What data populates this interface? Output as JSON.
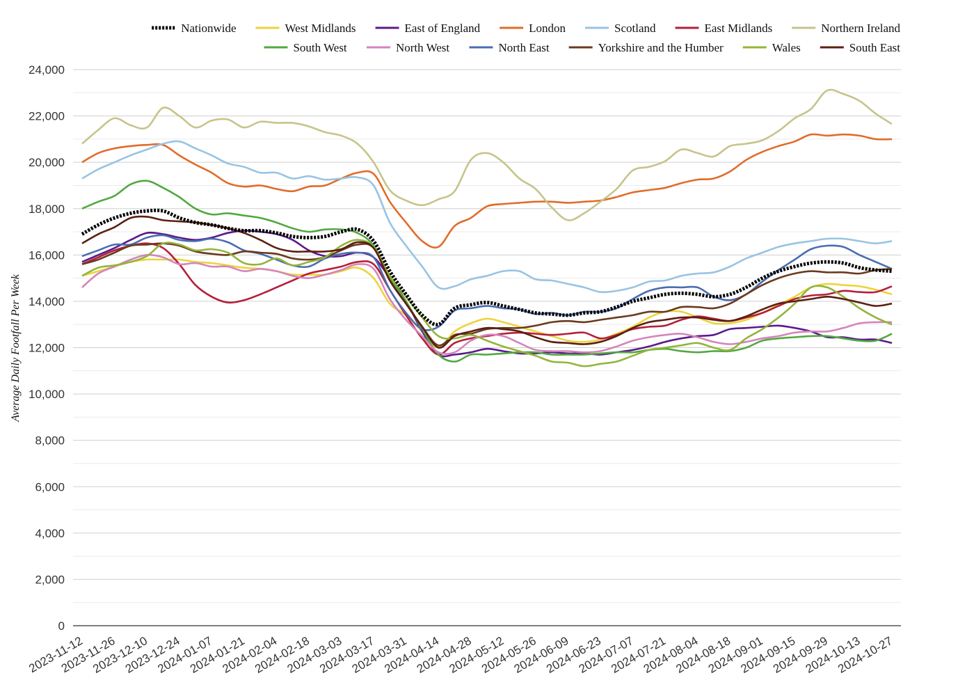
{
  "chart_data": {
    "type": "line",
    "title": "",
    "xlabel": "",
    "ylabel": "Average Daily Footfall Per Week",
    "ylim": [
      0,
      24000
    ],
    "yticks": [
      0,
      2000,
      4000,
      6000,
      8000,
      10000,
      12000,
      14000,
      16000,
      18000,
      20000,
      22000,
      24000
    ],
    "ytick_labels": [
      "0",
      "2,000",
      "4,000",
      "6,000",
      "8,000",
      "10,000",
      "12,000",
      "14,000",
      "16,000",
      "18,000",
      "20,000",
      "22,000",
      "24,000"
    ],
    "grid": true,
    "legend_position": "top",
    "xtick_labels": [
      "2023-11-12",
      "2023-11-26",
      "2023-12-10",
      "2023-12-24",
      "2024-01-07",
      "2024-01-21",
      "2024-02-04",
      "2024-02-18",
      "2024-03-03",
      "2024-03-17",
      "2024-03-31",
      "2024-04-14",
      "2024-04-28",
      "2024-05-12",
      "2024-05-26",
      "2024-06-09",
      "2024-06-23",
      "2024-07-07",
      "2024-07-21",
      "2024-08-04",
      "2024-08-18",
      "2024-09-01",
      "2024-09-15",
      "2024-09-29",
      "2024-10-13",
      "2024-10-27"
    ],
    "x": [
      "2023-11-12",
      "2023-11-19",
      "2023-11-26",
      "2023-12-03",
      "2023-12-10",
      "2023-12-17",
      "2023-12-24",
      "2023-12-31",
      "2024-01-07",
      "2024-01-14",
      "2024-01-21",
      "2024-01-28",
      "2024-02-04",
      "2024-02-11",
      "2024-02-18",
      "2024-02-25",
      "2024-03-03",
      "2024-03-10",
      "2024-03-17",
      "2024-03-24",
      "2024-03-31",
      "2024-04-07",
      "2024-04-14",
      "2024-04-21",
      "2024-04-28",
      "2024-05-05",
      "2024-05-12",
      "2024-05-19",
      "2024-05-26",
      "2024-06-02",
      "2024-06-09",
      "2024-06-16",
      "2024-06-23",
      "2024-06-30",
      "2024-07-07",
      "2024-07-14",
      "2024-07-21",
      "2024-07-28",
      "2024-08-04",
      "2024-08-11",
      "2024-08-18",
      "2024-08-25",
      "2024-09-01",
      "2024-09-08",
      "2024-09-15",
      "2024-09-22",
      "2024-09-29",
      "2024-10-06",
      "2024-10-13",
      "2024-10-20",
      "2024-10-27"
    ],
    "series": [
      {
        "name": "Nationwide",
        "color": "#000000",
        "dashed": true,
        "values": [
          16900,
          17300,
          17600,
          17800,
          17900,
          17900,
          17600,
          17400,
          17300,
          17150,
          17050,
          17050,
          16950,
          16800,
          16750,
          16800,
          17000,
          17100,
          16600,
          15300,
          14300,
          13400,
          13000,
          13700,
          13850,
          13950,
          13800,
          13650,
          13500,
          13450,
          13400,
          13500,
          13550,
          13750,
          14000,
          14150,
          14300,
          14350,
          14300,
          14200,
          14300,
          14600,
          15000,
          15300,
          15500,
          15650,
          15700,
          15650,
          15450,
          15350,
          15300
        ]
      },
      {
        "name": "West Midlands",
        "color": "#ebd43a",
        "values": [
          15100,
          15300,
          15500,
          15700,
          15800,
          15800,
          15800,
          15700,
          15650,
          15550,
          15450,
          15400,
          15300,
          15150,
          15150,
          15150,
          15300,
          15450,
          15000,
          13900,
          13400,
          12700,
          12000,
          12700,
          13050,
          13250,
          13100,
          12900,
          12700,
          12500,
          12300,
          12250,
          12350,
          12600,
          12900,
          13300,
          13550,
          13550,
          13300,
          13050,
          13050,
          13200,
          13500,
          13850,
          14200,
          14600,
          14750,
          14700,
          14650,
          14500,
          14300
        ]
      },
      {
        "name": "East of England",
        "color": "#5b1a8b",
        "values": [
          15700,
          16000,
          16300,
          16650,
          16950,
          16900,
          16750,
          16650,
          16750,
          16950,
          17050,
          17000,
          16900,
          16650,
          16200,
          15950,
          15950,
          16100,
          15900,
          15000,
          14000,
          12700,
          11700,
          11700,
          11800,
          11950,
          11850,
          11750,
          11750,
          11800,
          11750,
          11750,
          11700,
          11800,
          11900,
          12050,
          12250,
          12400,
          12500,
          12550,
          12800,
          12850,
          12900,
          12950,
          12850,
          12700,
          12450,
          12450,
          12350,
          12350,
          12200
        ]
      },
      {
        "name": "London",
        "color": "#e06c2a",
        "values": [
          20000,
          20400,
          20600,
          20700,
          20750,
          20750,
          20300,
          19900,
          19550,
          19100,
          18950,
          19000,
          18850,
          18750,
          18950,
          19000,
          19300,
          19550,
          19500,
          18300,
          17400,
          16600,
          16350,
          17250,
          17600,
          18100,
          18200,
          18250,
          18300,
          18300,
          18250,
          18300,
          18350,
          18500,
          18700,
          18800,
          18900,
          19100,
          19250,
          19300,
          19600,
          20100,
          20450,
          20700,
          20900,
          21200,
          21150,
          21200,
          21150,
          21000,
          21000
        ]
      },
      {
        "name": "Scotland",
        "color": "#98c4e3",
        "values": [
          19300,
          19700,
          20000,
          20300,
          20550,
          20800,
          20900,
          20600,
          20300,
          19950,
          19800,
          19550,
          19550,
          19300,
          19400,
          19250,
          19300,
          19350,
          19000,
          17400,
          16400,
          15500,
          14600,
          14650,
          14950,
          15100,
          15300,
          15300,
          14950,
          14900,
          14750,
          14600,
          14400,
          14450,
          14600,
          14850,
          14900,
          15100,
          15200,
          15250,
          15500,
          15850,
          16100,
          16350,
          16500,
          16600,
          16700,
          16700,
          16600,
          16500,
          16600
        ]
      },
      {
        "name": "East Midlands",
        "color": "#b51f3a",
        "values": [
          15600,
          15900,
          16200,
          16400,
          16500,
          16300,
          15600,
          14700,
          14200,
          13950,
          14050,
          14300,
          14600,
          14900,
          15200,
          15350,
          15500,
          15700,
          15600,
          14500,
          13400,
          12400,
          11700,
          12200,
          12400,
          12500,
          12600,
          12650,
          12600,
          12550,
          12600,
          12650,
          12400,
          12550,
          12800,
          12900,
          12950,
          13200,
          13350,
          13250,
          13150,
          13300,
          13500,
          13800,
          14100,
          14250,
          14300,
          14450,
          14400,
          14400,
          14650
        ]
      },
      {
        "name": "Northern Ireland",
        "color": "#c6c48a",
        "values": [
          20800,
          21400,
          21900,
          21600,
          21500,
          22350,
          22000,
          21500,
          21800,
          21850,
          21500,
          21750,
          21700,
          21700,
          21550,
          21300,
          21150,
          20800,
          20000,
          18800,
          18350,
          18150,
          18400,
          18750,
          20100,
          20400,
          20000,
          19300,
          18850,
          18050,
          17500,
          17800,
          18300,
          18850,
          19650,
          19800,
          20050,
          20550,
          20400,
          20250,
          20700,
          20800,
          20950,
          21350,
          21900,
          22300,
          23100,
          22950,
          22650,
          22100,
          21650
        ]
      },
      {
        "name": "South West",
        "color": "#52a840",
        "values": [
          18000,
          18300,
          18550,
          19050,
          19200,
          18900,
          18500,
          18000,
          17750,
          17800,
          17700,
          17600,
          17400,
          17150,
          17000,
          17100,
          17100,
          16950,
          16400,
          15000,
          14000,
          12800,
          11700,
          11400,
          11700,
          11700,
          11750,
          11800,
          11800,
          11700,
          11700,
          11700,
          11750,
          11800,
          11800,
          11900,
          11950,
          11850,
          11800,
          11850,
          11850,
          12000,
          12300,
          12400,
          12450,
          12500,
          12500,
          12400,
          12300,
          12300,
          12600
        ]
      },
      {
        "name": "North West",
        "color": "#d485bc",
        "values": [
          14600,
          15200,
          15500,
          15800,
          16000,
          15900,
          15600,
          15650,
          15500,
          15500,
          15300,
          15400,
          15300,
          15100,
          15000,
          15150,
          15350,
          15600,
          15400,
          14100,
          13200,
          12500,
          11800,
          11800,
          12300,
          12550,
          12500,
          12200,
          11900,
          11850,
          11850,
          11800,
          11850,
          12050,
          12300,
          12450,
          12550,
          12600,
          12450,
          12250,
          12150,
          12250,
          12400,
          12500,
          12650,
          12700,
          12700,
          12850,
          13050,
          13100,
          13100
        ]
      },
      {
        "name": "North East",
        "color": "#4a6db0",
        "values": [
          15950,
          16200,
          16450,
          16450,
          16750,
          16850,
          16650,
          16600,
          16700,
          16550,
          16200,
          16050,
          15800,
          15550,
          15500,
          15850,
          16050,
          16100,
          15900,
          14500,
          13500,
          12800,
          12900,
          13600,
          13700,
          13800,
          13700,
          13650,
          13450,
          13500,
          13400,
          13550,
          13550,
          13700,
          14100,
          14450,
          14600,
          14600,
          14600,
          14200,
          14050,
          14300,
          14850,
          15350,
          15800,
          16250,
          16400,
          16350,
          16000,
          15700,
          15400
        ]
      },
      {
        "name": "Yorkshire and the Humber",
        "color": "#6b3a1e",
        "values": [
          15600,
          15800,
          16100,
          16400,
          16450,
          16500,
          16400,
          16150,
          16050,
          16000,
          16150,
          16100,
          16050,
          15850,
          15800,
          15900,
          16200,
          16450,
          16300,
          14900,
          13900,
          12900,
          12100,
          12550,
          12600,
          12800,
          12850,
          12850,
          12950,
          13100,
          13150,
          13100,
          13200,
          13300,
          13400,
          13550,
          13550,
          13750,
          13750,
          13700,
          13900,
          14300,
          14700,
          15000,
          15200,
          15300,
          15250,
          15250,
          15200,
          15350,
          15400
        ]
      },
      {
        "name": "Wales",
        "color": "#93b53a",
        "values": [
          15100,
          15450,
          15550,
          15700,
          15950,
          16500,
          16450,
          16200,
          16250,
          16100,
          15650,
          15600,
          15850,
          15550,
          15700,
          15900,
          16400,
          16650,
          16350,
          15100,
          14200,
          13300,
          12500,
          12400,
          12550,
          12300,
          12050,
          11850,
          11650,
          11400,
          11350,
          11200,
          11300,
          11400,
          11650,
          11900,
          12000,
          12100,
          12200,
          12000,
          11900,
          12400,
          12800,
          13300,
          13900,
          14600,
          14600,
          14200,
          13700,
          13300,
          13000
        ]
      },
      {
        "name": "South East",
        "color": "#5c1f12",
        "values": [
          16500,
          16900,
          17200,
          17600,
          17650,
          17500,
          17450,
          17400,
          17300,
          17150,
          16950,
          16650,
          16300,
          16150,
          16150,
          16150,
          16250,
          16550,
          16300,
          14900,
          13900,
          12900,
          12000,
          12500,
          12700,
          12850,
          12800,
          12700,
          12450,
          12250,
          12200,
          12150,
          12250,
          12500,
          12850,
          13100,
          13200,
          13300,
          13300,
          13200,
          13150,
          13350,
          13650,
          13900,
          14000,
          14100,
          14200,
          14100,
          13950,
          13800,
          13900
        ]
      }
    ]
  }
}
